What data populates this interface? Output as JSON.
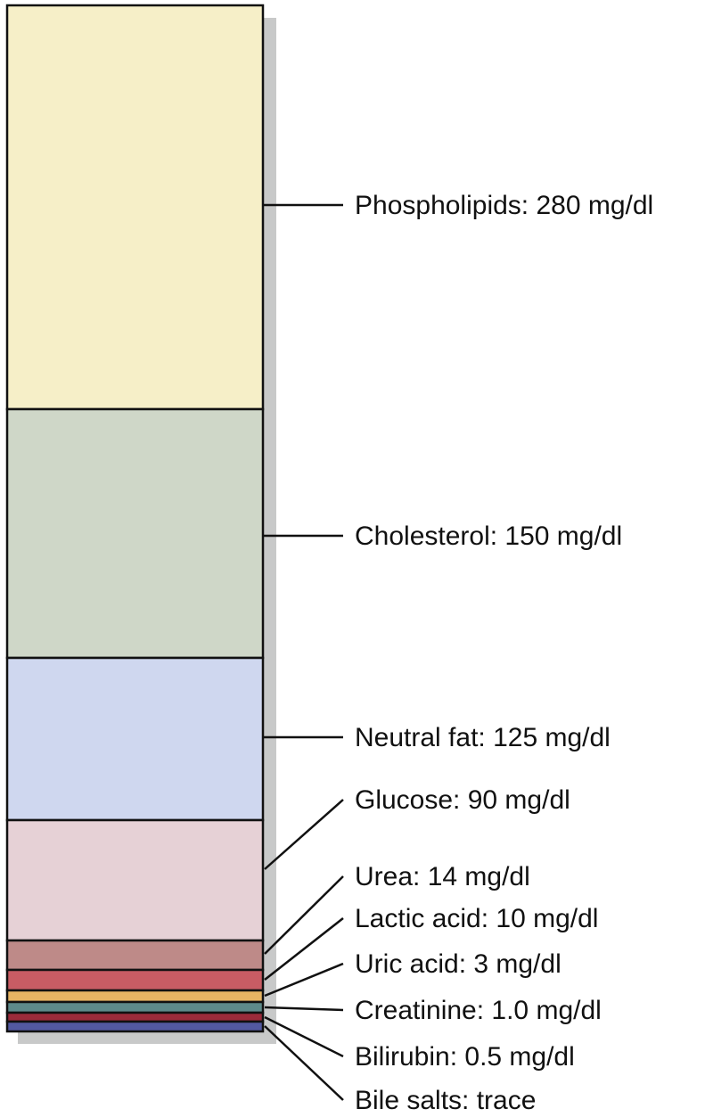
{
  "segments": [
    {
      "label": "Phospholipids: 280 mg/dl"
    },
    {
      "label": "Cholesterol: 150 mg/dl"
    },
    {
      "label": "Neutral fat: 125 mg/dl"
    },
    {
      "label": "Glucose: 90 mg/dl"
    },
    {
      "label": "Urea: 14 mg/dl"
    },
    {
      "label": "Lactic acid: 10 mg/dl"
    },
    {
      "label": "Uric acid: 3 mg/dl"
    },
    {
      "label": "Creatinine: 1.0 mg/dl"
    },
    {
      "label": "Bilirubin: 0.5 mg/dl"
    },
    {
      "label": "Bile salts: trace"
    }
  ]
}
